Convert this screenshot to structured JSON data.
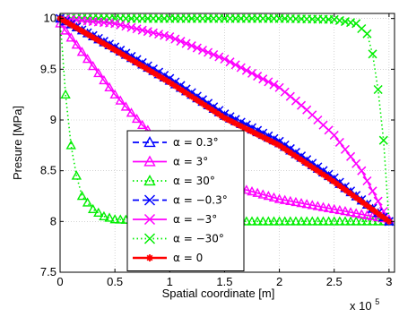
{
  "chart_data": {
    "type": "line",
    "title": "",
    "xlabel": "Spatial coordinate [m]",
    "ylabel": "Presure [MPa]",
    "x_exponent_label": "x 10",
    "x_exponent_power": "5",
    "xlim": [
      0,
      3.05
    ],
    "ylim": [
      7.5,
      10.05
    ],
    "x_scale_note": "x values in units of 10^5 m",
    "xticks": [
      "0",
      "0.5",
      "1",
      "1.5",
      "2",
      "2.5",
      "3"
    ],
    "yticks": [
      "7.5",
      "8",
      "8.5",
      "9",
      "9.5",
      "10"
    ],
    "grid": true,
    "legend_position": "lower-left-center",
    "series": [
      {
        "name": "α = 0.3°",
        "color": "#0000ff",
        "marker": "triangle",
        "dash": "dashed",
        "x": [
          0,
          0.5,
          1.0,
          1.5,
          2.0,
          2.5,
          3.0
        ],
        "y": [
          10.0,
          9.705,
          9.385,
          9.04,
          8.77,
          8.41,
          8.0
        ]
      },
      {
        "name": "α = 3°",
        "color": "#ff00ff",
        "marker": "triangle",
        "dash": "solid",
        "x": [
          0,
          0.25,
          0.5,
          0.75,
          1.0,
          1.25,
          1.5,
          2.0,
          2.5,
          3.0
        ],
        "y": [
          9.95,
          9.6,
          9.25,
          8.95,
          8.7,
          8.5,
          8.37,
          8.22,
          8.12,
          8.02
        ]
      },
      {
        "name": "α = 30°",
        "color": "#00ee00",
        "marker": "triangle",
        "dash": "dotted",
        "x": [
          0,
          0.05,
          0.1,
          0.15,
          0.2,
          0.3,
          0.4,
          0.5,
          1.0,
          1.5,
          2.0,
          2.5,
          3.0
        ],
        "y": [
          10.0,
          9.25,
          8.75,
          8.45,
          8.25,
          8.12,
          8.05,
          8.02,
          8.0,
          8.0,
          8.0,
          8.0,
          8.0
        ]
      },
      {
        "name": "α = −0.3°",
        "color": "#0000ff",
        "marker": "x",
        "dash": "dashed",
        "x": [
          0,
          0.5,
          1.0,
          1.5,
          2.0,
          2.5,
          3.0
        ],
        "y": [
          10.0,
          9.72,
          9.41,
          9.06,
          8.79,
          8.43,
          8.0
        ]
      },
      {
        "name": "α = −3°",
        "color": "#ff00ff",
        "marker": "x",
        "dash": "solid",
        "x": [
          0,
          0.5,
          1.0,
          1.5,
          2.0,
          2.25,
          2.5,
          2.75,
          3.0
        ],
        "y": [
          10.0,
          9.95,
          9.82,
          9.6,
          9.32,
          9.1,
          8.85,
          8.5,
          8.0
        ]
      },
      {
        "name": "α = −30°",
        "color": "#00ee00",
        "marker": "x",
        "dash": "dotted",
        "x": [
          0,
          0.5,
          1.0,
          1.5,
          2.0,
          2.5,
          2.7,
          2.8,
          2.85,
          2.9,
          2.95,
          3.0
        ],
        "y": [
          10.0,
          10.0,
          10.0,
          10.0,
          10.0,
          9.99,
          9.95,
          9.85,
          9.65,
          9.3,
          8.8,
          8.0
        ]
      },
      {
        "name": "α = 0",
        "color": "#ff0000",
        "marker": "asterisk",
        "dash": "solid",
        "x": [
          0,
          0.5,
          1.0,
          1.5,
          2.0,
          2.5,
          3.0
        ],
        "y": [
          10.0,
          9.69,
          9.37,
          9.02,
          8.75,
          8.39,
          8.0
        ]
      }
    ]
  }
}
